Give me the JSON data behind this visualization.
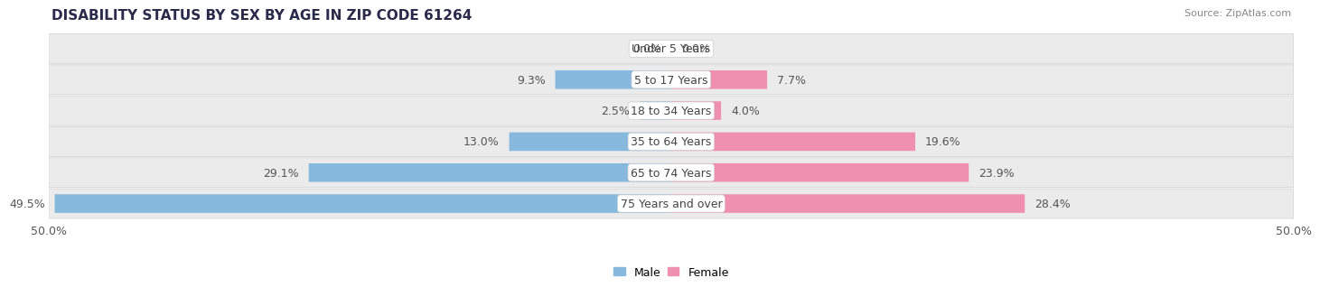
{
  "title": "DISABILITY STATUS BY SEX BY AGE IN ZIP CODE 61264",
  "source": "Source: ZipAtlas.com",
  "categories": [
    "Under 5 Years",
    "5 to 17 Years",
    "18 to 34 Years",
    "35 to 64 Years",
    "65 to 74 Years",
    "75 Years and over"
  ],
  "male_values": [
    0.0,
    9.3,
    2.5,
    13.0,
    29.1,
    49.5
  ],
  "female_values": [
    0.0,
    7.7,
    4.0,
    19.6,
    23.9,
    28.4
  ],
  "male_color": "#87b8de",
  "female_color": "#f090b0",
  "row_bg_color": "#ebebeb",
  "row_border_color": "#d0d0d0",
  "max_value": 50.0,
  "bar_height": 0.58,
  "title_fontsize": 11,
  "label_fontsize": 9,
  "category_fontsize": 9,
  "tick_fontsize": 9,
  "legend_fontsize": 9
}
